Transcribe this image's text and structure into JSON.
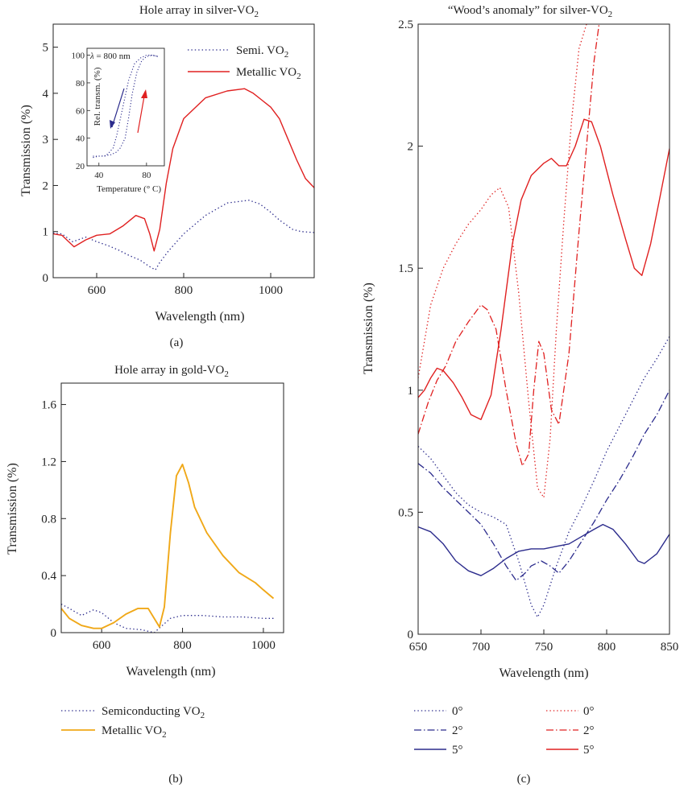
{
  "colors": {
    "navy": "#2b2b8c",
    "red": "#e02020",
    "orange": "#f0a818",
    "axis": "#222222"
  },
  "chart_data": [
    {
      "panel": "a",
      "type": "line",
      "title": "Hole array in silver-VO",
      "title_sub": "2",
      "xlabel": "Wavelength (nm)",
      "ylabel": "Transmission (%)",
      "xlim": [
        500,
        1100
      ],
      "ylim": [
        0,
        5.5
      ],
      "xticks": [
        "600",
        "800",
        "1000"
      ],
      "yticks": [
        "0",
        "1",
        "2",
        "3",
        "4",
        "5"
      ],
      "caption": "(a)",
      "legend_position": "top-right",
      "series": [
        {
          "name": "Semi. VO",
          "name_sub": "2",
          "style": "dotted",
          "color": "#2b2b8c",
          "x": [
            500,
            520,
            545,
            575,
            600,
            625,
            650,
            675,
            700,
            720,
            735,
            745,
            765,
            800,
            850,
            900,
            950,
            975,
            1000,
            1020,
            1050,
            1070,
            1100
          ],
          "y": [
            0.97,
            0.95,
            0.78,
            0.88,
            0.78,
            0.7,
            0.6,
            0.48,
            0.38,
            0.25,
            0.17,
            0.33,
            0.58,
            0.95,
            1.35,
            1.62,
            1.68,
            1.6,
            1.42,
            1.25,
            1.05,
            1.0,
            0.98
          ]
        },
        {
          "name": "Metallic VO",
          "name_sub": "2",
          "style": "solid",
          "color": "#e02020",
          "x": [
            500,
            520,
            548,
            575,
            600,
            630,
            660,
            690,
            710,
            722,
            732,
            745,
            760,
            775,
            800,
            850,
            900,
            940,
            960,
            980,
            1000,
            1020,
            1040,
            1060,
            1080,
            1100
          ],
          "y": [
            0.95,
            0.92,
            0.67,
            0.82,
            0.92,
            0.95,
            1.12,
            1.35,
            1.28,
            0.95,
            0.58,
            1.05,
            2.05,
            2.8,
            3.45,
            3.9,
            4.05,
            4.1,
            4.0,
            3.85,
            3.7,
            3.45,
            3.0,
            2.55,
            2.15,
            1.95
          ]
        }
      ],
      "inset": {
        "annotation_symbol": "λ",
        "annotation_value": "= 800 nm",
        "xlabel": "Temperature (° C)",
        "ylabel": "Rel. transm. (%)",
        "xlim": [
          30,
          95
        ],
        "ylim": [
          20,
          105
        ],
        "xticks": [
          "40",
          "80"
        ],
        "yticks": [
          "20",
          "40",
          "60",
          "80",
          "100"
        ],
        "series": [
          {
            "style": "dotted",
            "color": "#2b2b8c",
            "direction": "cooling",
            "x": [
              35,
              40,
              45,
              48,
              52,
              55,
              60,
              65,
              70,
              75,
              80,
              85,
              90
            ],
            "y": [
              26,
              27,
              27,
              29,
              33,
              42,
              62,
              82,
              94,
              98,
              100,
              100,
              99
            ]
          },
          {
            "style": "dotted",
            "color": "#2b2b8c",
            "direction": "heating",
            "x": [
              35,
              42,
              50,
              55,
              58,
              62,
              65,
              68,
              72,
              76,
              80,
              85,
              90
            ],
            "y": [
              27,
              27,
              28,
              30,
              33,
              40,
              55,
              72,
              88,
              96,
              99,
              100,
              99
            ]
          }
        ]
      }
    },
    {
      "panel": "b",
      "type": "line",
      "title": "Hole array in gold-VO",
      "title_sub": "2",
      "xlabel": "Wavelength (nm)",
      "ylabel": "Transmission (%)",
      "xlim": [
        500,
        1050
      ],
      "ylim": [
        0,
        1.75
      ],
      "xticks": [
        "600",
        "800",
        "1000"
      ],
      "yticks": [
        "0",
        "0.4",
        "0.8",
        "1.2",
        "1.6"
      ],
      "caption": "(b)",
      "legend_position": "below",
      "series": [
        {
          "name": "Semiconducting VO",
          "name_sub": "2",
          "style": "dotted",
          "color": "#2b2b8c",
          "x": [
            500,
            520,
            550,
            580,
            600,
            630,
            660,
            700,
            730,
            750,
            770,
            800,
            850,
            900,
            950,
            1000,
            1025
          ],
          "y": [
            0.2,
            0.17,
            0.12,
            0.16,
            0.14,
            0.07,
            0.03,
            0.02,
            0.0,
            0.05,
            0.1,
            0.12,
            0.12,
            0.11,
            0.11,
            0.1,
            0.1
          ]
        },
        {
          "name": "Metallic VO",
          "name_sub": "2",
          "style": "solid",
          "color": "#f0a818",
          "x": [
            500,
            520,
            550,
            580,
            600,
            630,
            660,
            690,
            715,
            730,
            743,
            755,
            770,
            785,
            800,
            815,
            830,
            860,
            900,
            940,
            980,
            1000,
            1025
          ],
          "y": [
            0.17,
            0.1,
            0.05,
            0.03,
            0.03,
            0.07,
            0.13,
            0.17,
            0.17,
            0.1,
            0.04,
            0.18,
            0.7,
            1.1,
            1.18,
            1.05,
            0.88,
            0.7,
            0.54,
            0.42,
            0.35,
            0.3,
            0.24
          ]
        }
      ]
    },
    {
      "panel": "c",
      "type": "line",
      "title": "“Wood’s anomaly” for silver-VO",
      "title_sub": "2",
      "xlabel": "Wavelength (nm)",
      "ylabel": "Transmission (%)",
      "xlim": [
        650,
        850
      ],
      "ylim": [
        0,
        2.5
      ],
      "xticks": [
        "650",
        "700",
        "750",
        "800",
        "850"
      ],
      "yticks": [
        "0",
        "0.5",
        "1",
        "1.5",
        "2",
        "2.5"
      ],
      "caption": "(c)",
      "legend_position": "below",
      "series": [
        {
          "name": "0°",
          "style": "dotted",
          "color": "#2b2b8c",
          "x": [
            650,
            660,
            670,
            680,
            690,
            700,
            710,
            720,
            730,
            740,
            745,
            750,
            760,
            770,
            780,
            790,
            800,
            810,
            820,
            830,
            840,
            850
          ],
          "y": [
            0.77,
            0.72,
            0.65,
            0.58,
            0.53,
            0.5,
            0.48,
            0.45,
            0.3,
            0.12,
            0.07,
            0.12,
            0.28,
            0.42,
            0.52,
            0.63,
            0.75,
            0.85,
            0.95,
            1.05,
            1.13,
            1.22
          ]
        },
        {
          "name": "2°",
          "style": "dashdot",
          "color": "#2b2b8c",
          "x": [
            650,
            660,
            670,
            680,
            690,
            700,
            710,
            720,
            728,
            735,
            740,
            748,
            755,
            762,
            770,
            780,
            790,
            800,
            810,
            820,
            830,
            840,
            850
          ],
          "y": [
            0.7,
            0.66,
            0.6,
            0.55,
            0.5,
            0.45,
            0.37,
            0.28,
            0.22,
            0.25,
            0.28,
            0.3,
            0.28,
            0.25,
            0.3,
            0.38,
            0.46,
            0.55,
            0.63,
            0.72,
            0.82,
            0.9,
            1.0
          ]
        },
        {
          "name": "5°",
          "style": "solid",
          "color": "#2b2b8c",
          "x": [
            650,
            660,
            670,
            680,
            690,
            700,
            710,
            720,
            730,
            740,
            750,
            760,
            770,
            780,
            790,
            797,
            805,
            815,
            825,
            830,
            835,
            840,
            850
          ],
          "y": [
            0.44,
            0.42,
            0.37,
            0.3,
            0.26,
            0.24,
            0.27,
            0.31,
            0.34,
            0.35,
            0.35,
            0.36,
            0.37,
            0.4,
            0.43,
            0.45,
            0.43,
            0.37,
            0.3,
            0.29,
            0.31,
            0.33,
            0.41
          ]
        },
        {
          "name": "0°",
          "style": "dotted",
          "color": "#e02020",
          "x": [
            650,
            655,
            660,
            670,
            680,
            690,
            700,
            708,
            715,
            722,
            730,
            738,
            745,
            750,
            755,
            760,
            766,
            772,
            778,
            784
          ],
          "y": [
            1.05,
            1.2,
            1.35,
            1.5,
            1.6,
            1.68,
            1.74,
            1.8,
            1.83,
            1.75,
            1.4,
            0.95,
            0.6,
            0.56,
            0.8,
            1.25,
            1.7,
            2.1,
            2.4,
            2.5
          ]
        },
        {
          "name": "2°",
          "style": "dashdot",
          "color": "#e02020",
          "x": [
            650,
            658,
            665,
            672,
            680,
            690,
            700,
            705,
            712,
            720,
            728,
            733,
            738,
            742,
            746,
            750,
            756,
            762,
            770,
            778,
            784,
            790,
            794
          ],
          "y": [
            0.82,
            0.95,
            1.04,
            1.1,
            1.2,
            1.28,
            1.35,
            1.33,
            1.25,
            1.0,
            0.78,
            0.69,
            0.74,
            1.0,
            1.2,
            1.15,
            0.92,
            0.86,
            1.15,
            1.65,
            2.0,
            2.35,
            2.5
          ]
        },
        {
          "name": "5°",
          "style": "solid",
          "color": "#e02020",
          "x": [
            650,
            655,
            660,
            665,
            670,
            678,
            685,
            692,
            700,
            708,
            716,
            725,
            732,
            740,
            750,
            756,
            762,
            768,
            775,
            782,
            788,
            795,
            805,
            815,
            822,
            828,
            835,
            842,
            850
          ],
          "y": [
            0.97,
            1.0,
            1.05,
            1.09,
            1.08,
            1.03,
            0.97,
            0.9,
            0.88,
            0.98,
            1.25,
            1.6,
            1.78,
            1.88,
            1.93,
            1.95,
            1.92,
            1.92,
            2.0,
            2.11,
            2.1,
            2.0,
            1.8,
            1.62,
            1.5,
            1.47,
            1.6,
            1.78,
            1.99
          ]
        }
      ]
    }
  ]
}
